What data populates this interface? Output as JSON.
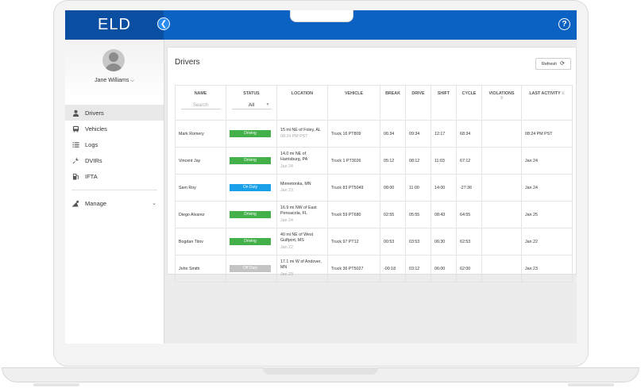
{
  "app": {
    "logo": "ELD",
    "collapse_icon": "chevron-left-icon",
    "help_icon": "help-circle-icon"
  },
  "colors": {
    "brand": "#0b62c2",
    "driving": "#43b04a",
    "on_duty": "#1aa0e8",
    "off_duty": "#c4c4c4"
  },
  "sidebar": {
    "user_name": "Jane Williams",
    "items": [
      {
        "label": "Drivers",
        "icon": "person-icon",
        "active": true
      },
      {
        "label": "Vehicles",
        "icon": "bus-icon",
        "active": false
      },
      {
        "label": "Logs",
        "icon": "list-icon",
        "active": false
      },
      {
        "label": "DVIRs",
        "icon": "wrench-icon",
        "active": false
      },
      {
        "label": "IFTA",
        "icon": "fuel-icon",
        "active": false
      }
    ],
    "manage": {
      "label": "Manage",
      "icon": "settings-icon"
    }
  },
  "main": {
    "title": "Drivers",
    "refresh_label": "Refresh",
    "table": {
      "headers": [
        "NAME",
        "STATUS",
        "LOCATION",
        "VEHICLE",
        "BREAK",
        "DRIVE",
        "SHIFT",
        "CYCLE",
        "VIOLATIONS",
        "LAST ACTIVITY"
      ],
      "search_placeholder": "Search",
      "status_filter": "All",
      "rows": [
        {
          "name": "Mark Romery",
          "status": "Driving",
          "status_type": "driving",
          "location": "15 mi NE of Foley, AL",
          "location_time": "08:24 PM PST",
          "vehicle": "Truck 16 PT809",
          "break": "06:34",
          "drive": "09:34",
          "shift": "12:17",
          "cycle": "68:34",
          "violations": "",
          "last_activity": "08:24 PM PST"
        },
        {
          "name": "Vincent Jay",
          "status": "Driving",
          "status_type": "driving",
          "location": "14.0 mi NE of Harrisburg, PA",
          "location_time": "Jan 24",
          "vehicle": "Truck 1 PT3026",
          "break": "05:12",
          "drive": "08:12",
          "shift": "11:03",
          "cycle": "67:12",
          "violations": "",
          "last_activity": "Jan 24"
        },
        {
          "name": "Sam Roy",
          "status": "On Duty",
          "status_type": "on_duty",
          "location": "Minnetonka, MN",
          "location_time": "Jan 23",
          "vehicle": "Truck 83 PT5049",
          "break": "08:00",
          "drive": "11:00",
          "shift": "14:00",
          "cycle": "-27:36",
          "violations": "",
          "last_activity": "Jan 24"
        },
        {
          "name": "Diego Alvarez",
          "status": "Driving",
          "status_type": "driving",
          "location": "16.9 mi NW of East Pensacola, FL",
          "location_time": "Jan 24",
          "vehicle": "Truck 59 PT680",
          "break": "02:55",
          "drive": "05:55",
          "shift": "08:43",
          "cycle": "64:55",
          "violations": "",
          "last_activity": "Jan 25"
        },
        {
          "name": "Bogdan Titov",
          "status": "Driving",
          "status_type": "driving",
          "location": "40 mi NE of West Gulfport, MS",
          "location_time": "Jan 22",
          "vehicle": "Truck 97 PT12",
          "break": "00:53",
          "drive": "03:53",
          "shift": "06:30",
          "cycle": "62:53",
          "violations": "",
          "last_activity": "Jan 22"
        },
        {
          "name": "John Smith",
          "status": "Off Duty",
          "status_type": "off_duty",
          "location": "17.1 mi W of Andover, MN",
          "location_time": "Jan 23",
          "vehicle": "Truck 36 PT5027",
          "break": "-00:18",
          "drive": "03:12",
          "shift": "06:00",
          "cycle": "62:00",
          "violations": "",
          "last_activity": "Jan 23"
        }
      ]
    }
  }
}
